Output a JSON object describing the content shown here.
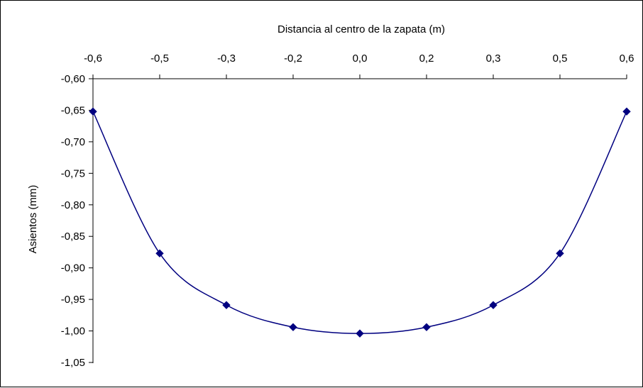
{
  "chart_data": {
    "type": "line",
    "title": "",
    "xlabel": "Distancia al centro de la zapata (m)",
    "ylabel": "Asientos  (mm)",
    "x_tick_labels": [
      "-0,6",
      "-0,5",
      "-0,3",
      "-0,2",
      "0,0",
      "0,2",
      "0,3",
      "0,5",
      "0,6"
    ],
    "y_tick_labels": [
      "-0,60",
      "-0,65",
      "-0,70",
      "-0,75",
      "-0,80",
      "-0,85",
      "-0,90",
      "-0,95",
      "-1,00",
      "-1,05"
    ],
    "x_axis_position": "top",
    "ylim": [
      -1.05,
      -0.6
    ],
    "y_inverted": true,
    "grid": false,
    "legend": "none",
    "series": [
      {
        "x": [
          -0.6,
          -0.5,
          -0.3,
          -0.2,
          0.0,
          0.2,
          0.3,
          0.5,
          0.6
        ],
        "values": [
          -0.652,
          -0.877,
          -0.959,
          -0.994,
          -1.004,
          -0.994,
          -0.959,
          -0.877,
          -0.652
        ],
        "color": "#000080",
        "marker": "diamond"
      }
    ]
  }
}
